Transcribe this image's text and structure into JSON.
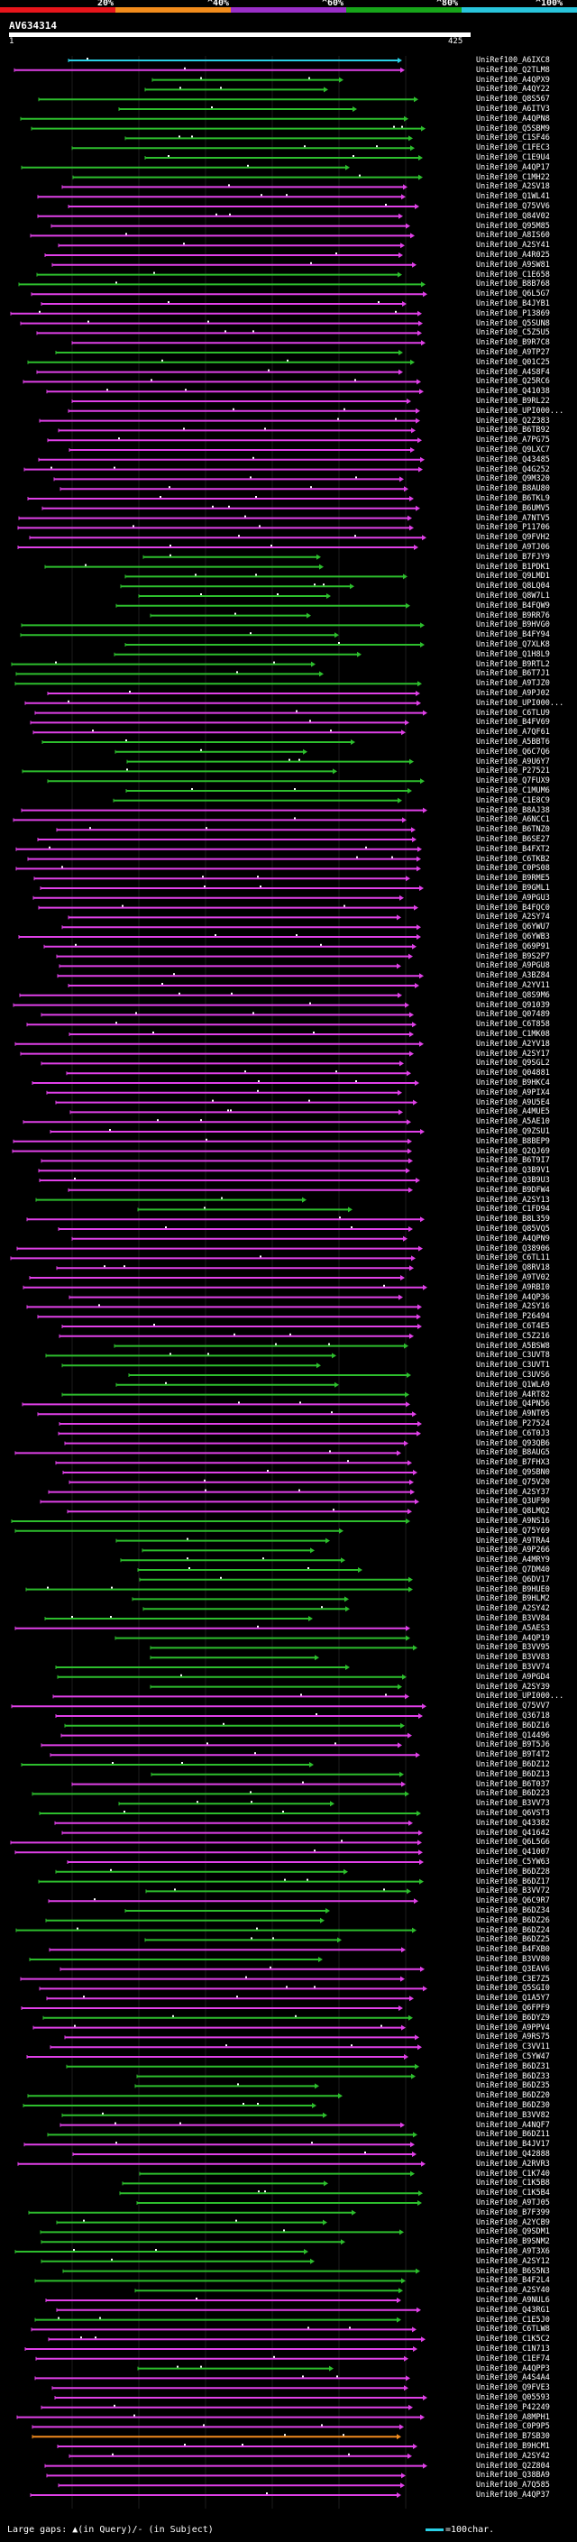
{
  "scale": {
    "labels": [
      "20%",
      "^40%",
      "^60%",
      "^80%",
      "^100%"
    ],
    "colors": [
      "#e8151b",
      "#f28c1c",
      "#9a2fc8",
      "#17a51a",
      "#29c5dc"
    ]
  },
  "query": {
    "id": "AV634314",
    "start": "1",
    "end": "425"
  },
  "legend": {
    "text": "Large gaps: ▲(in Query)/- (in Subject)",
    "scale_text": "=100char."
  },
  "hits": [
    {
      "label": "UniRef100_A6IXC8",
      "c": "cyan"
    },
    {
      "label": "UniRef100_Q2TLM8",
      "c": "magenta"
    },
    {
      "label": "UniRef100_A4QPX9",
      "c": "green"
    },
    {
      "label": "UniRef100_A4QY22",
      "c": "green"
    },
    {
      "label": "UniRef100_Q8S567",
      "c": "green"
    },
    {
      "label": "UniRef100_A6ITV3",
      "c": "green"
    },
    {
      "label": "UniRef100_A4QPN8",
      "c": "green"
    },
    {
      "label": "UniRef100_Q5SBM9",
      "c": "green"
    },
    {
      "label": "UniRef100_C1SF46",
      "c": "green"
    },
    {
      "label": "UniRef100_C1FEC3",
      "c": "green"
    },
    {
      "label": "UniRef100_C1E9U4",
      "c": "green"
    },
    {
      "label": "UniRef100_A4QP17",
      "c": "green"
    },
    {
      "label": "UniRef100_C1MH22",
      "c": "green"
    },
    {
      "label": "UniRef100_A2SV18",
      "c": "magenta"
    },
    {
      "label": "UniRef100_Q1WL41",
      "c": "magenta"
    },
    {
      "label": "UniRef100_Q75VV6",
      "c": "magenta"
    },
    {
      "label": "UniRef100_Q84V02",
      "c": "magenta"
    },
    {
      "label": "UniRef100_Q95M85",
      "c": "magenta"
    },
    {
      "label": "UniRef100_A8IS60",
      "c": "magenta"
    },
    {
      "label": "UniRef100_A2SY41",
      "c": "magenta"
    },
    {
      "label": "UniRef100_A4R025",
      "c": "magenta"
    },
    {
      "label": "UniRef100_A9SW81",
      "c": "magenta"
    },
    {
      "label": "UniRef100_C1E658",
      "c": "green"
    },
    {
      "label": "UniRef100_B8B768",
      "c": "green"
    },
    {
      "label": "UniRef100_Q6L5G7",
      "c": "magenta"
    },
    {
      "label": "UniRef100_B4JYB1",
      "c": "magenta"
    },
    {
      "label": "UniRef100_P13869",
      "c": "magenta"
    },
    {
      "label": "UniRef100_Q5SUN8",
      "c": "magenta"
    },
    {
      "label": "UniRef100_C5Z5U5",
      "c": "magenta"
    },
    {
      "label": "UniRef100_B9R7C8",
      "c": "magenta"
    },
    {
      "label": "UniRef100_A9TP27",
      "c": "green"
    },
    {
      "label": "UniRef100_Q01C25",
      "c": "green"
    },
    {
      "label": "UniRef100_A4S8F4",
      "c": "magenta"
    },
    {
      "label": "UniRef100_Q25RC6",
      "c": "magenta"
    },
    {
      "label": "UniRef100_Q41038",
      "c": "magenta"
    },
    {
      "label": "UniRef100_B9RL22",
      "c": "magenta"
    },
    {
      "label": "UniRef100_UPI000...",
      "c": "magenta"
    },
    {
      "label": "UniRef100_Q2Z383",
      "c": "magenta"
    },
    {
      "label": "UniRef100_B6TB92",
      "c": "magenta"
    },
    {
      "label": "UniRef100_A7PG75",
      "c": "magenta"
    },
    {
      "label": "UniRef100_Q9LXC7",
      "c": "magenta"
    },
    {
      "label": "UniRef100_Q43485",
      "c": "magenta"
    },
    {
      "label": "UniRef100_Q4G252",
      "c": "magenta"
    },
    {
      "label": "UniRef100_Q9M320",
      "c": "magenta"
    },
    {
      "label": "UniRef100_B8AU80",
      "c": "magenta"
    },
    {
      "label": "UniRef100_B6TKL9",
      "c": "magenta"
    },
    {
      "label": "UniRef100_B6UMV5",
      "c": "magenta"
    },
    {
      "label": "UniRef100_A7NTV5",
      "c": "magenta"
    },
    {
      "label": "UniRef100_P11706",
      "c": "magenta"
    },
    {
      "label": "UniRef100_Q9FVH2",
      "c": "magenta"
    },
    {
      "label": "UniRef100_A9TJ06",
      "c": "magenta"
    },
    {
      "label": "UniRef100_B7FJY9",
      "c": "green"
    },
    {
      "label": "UniRef100_B1PDK1",
      "c": "green"
    },
    {
      "label": "UniRef100_Q9LMD1",
      "c": "green"
    },
    {
      "label": "UniRef100_Q8LQ04",
      "c": "green"
    },
    {
      "label": "UniRef100_Q8W7L1",
      "c": "green"
    },
    {
      "label": "UniRef100_B4FQW9",
      "c": "green"
    },
    {
      "label": "UniRef100_B9RR76",
      "c": "green"
    },
    {
      "label": "UniRef100_B9HVG0",
      "c": "green"
    },
    {
      "label": "UniRef100_B4FY94",
      "c": "green"
    },
    {
      "label": "UniRef100_Q7XLK8",
      "c": "green"
    },
    {
      "label": "UniRef100_Q1H8L9",
      "c": "green"
    },
    {
      "label": "UniRef100_B9RTL2",
      "c": "green"
    },
    {
      "label": "UniRef100_B6T7J1",
      "c": "green"
    },
    {
      "label": "UniRef100_A9TJZ0",
      "c": "green"
    },
    {
      "label": "UniRef100_A9PJ02",
      "c": "magenta"
    },
    {
      "label": "UniRef100_UPI000...",
      "c": "magenta"
    },
    {
      "label": "UniRef100_C6TLU9",
      "c": "magenta"
    },
    {
      "label": "UniRef100_B4FV69",
      "c": "magenta"
    },
    {
      "label": "UniRef100_A7QF61",
      "c": "magenta"
    },
    {
      "label": "UniRef100_A5BBT6",
      "c": "green"
    },
    {
      "label": "UniRef100_Q6C7Q6",
      "c": "green"
    },
    {
      "label": "UniRef100_A9U6Y7",
      "c": "green"
    },
    {
      "label": "UniRef100_P27521",
      "c": "green"
    },
    {
      "label": "UniRef100_Q7FUX9",
      "c": "green"
    },
    {
      "label": "UniRef100_C1MUM6",
      "c": "green"
    },
    {
      "label": "UniRef100_C1E8C9",
      "c": "green"
    },
    {
      "label": "UniRef100_B8AJ38",
      "c": "magenta"
    },
    {
      "label": "UniRef100_A6NCC1",
      "c": "magenta"
    },
    {
      "label": "UniRef100_B6TNZ0",
      "c": "magenta"
    },
    {
      "label": "UniRef100_B6SE27",
      "c": "magenta"
    },
    {
      "label": "UniRef100_B4FXT2",
      "c": "magenta"
    },
    {
      "label": "UniRef100_C6TKB2",
      "c": "magenta"
    },
    {
      "label": "UniRef100_C0PS08",
      "c": "magenta"
    },
    {
      "label": "UniRef100_B9RME5",
      "c": "magenta"
    },
    {
      "label": "UniRef100_B9GML1",
      "c": "magenta"
    },
    {
      "label": "UniRef100_A9PGU3",
      "c": "magenta"
    },
    {
      "label": "UniRef100_B4FQC0",
      "c": "magenta"
    },
    {
      "label": "UniRef100_A2SY74",
      "c": "magenta"
    },
    {
      "label": "UniRef100_Q6YWU7",
      "c": "magenta"
    },
    {
      "label": "UniRef100_Q6YWB3",
      "c": "magenta"
    },
    {
      "label": "UniRef100_Q69P91",
      "c": "magenta"
    },
    {
      "label": "UniRef100_B9S2P7",
      "c": "magenta"
    },
    {
      "label": "UniRef100_A9PGU8",
      "c": "magenta"
    },
    {
      "label": "UniRef100_A3BZ84",
      "c": "magenta"
    },
    {
      "label": "UniRef100_A2YV11",
      "c": "magenta"
    },
    {
      "label": "UniRef100_Q8S9M6",
      "c": "magenta"
    },
    {
      "label": "UniRef100_Q91039",
      "c": "magenta"
    },
    {
      "label": "UniRef100_Q07489",
      "c": "magenta"
    },
    {
      "label": "UniRef100_C6T858",
      "c": "magenta"
    },
    {
      "label": "UniRef100_C1MK08",
      "c": "magenta"
    },
    {
      "label": "UniRef100_A2YV18",
      "c": "magenta"
    },
    {
      "label": "UniRef100_A2SY17",
      "c": "magenta"
    },
    {
      "label": "UniRef100_Q9SGL2",
      "c": "magenta"
    },
    {
      "label": "UniRef100_Q04881",
      "c": "magenta"
    },
    {
      "label": "UniRef100_B9HKC4",
      "c": "magenta"
    },
    {
      "label": "UniRef100_A9PIX4",
      "c": "magenta"
    },
    {
      "label": "UniRef100_A9U5E4",
      "c": "magenta"
    },
    {
      "label": "UniRef100_A4MUE5",
      "c": "magenta"
    },
    {
      "label": "UniRef100_A5AE10",
      "c": "magenta"
    },
    {
      "label": "UniRef100_Q9ZSU1",
      "c": "magenta"
    },
    {
      "label": "UniRef100_B8BEP9",
      "c": "magenta"
    },
    {
      "label": "UniRef100_Q2QJ69",
      "c": "magenta"
    },
    {
      "label": "UniRef100_B6T9I7",
      "c": "magenta"
    },
    {
      "label": "UniRef100_Q3B9V1",
      "c": "magenta"
    },
    {
      "label": "UniRef100_Q3B9U3",
      "c": "magenta"
    },
    {
      "label": "UniRef100_B9DFW4",
      "c": "magenta"
    },
    {
      "label": "UniRef100_A2SY13",
      "c": "green"
    },
    {
      "label": "UniRef100_C1FD94",
      "c": "green"
    },
    {
      "label": "UniRef100_B8L359",
      "c": "magenta"
    },
    {
      "label": "UniRef100_Q85VQ5",
      "c": "magenta"
    },
    {
      "label": "UniRef100_A4QPN9",
      "c": "magenta"
    },
    {
      "label": "UniRef100_Q38906",
      "c": "magenta"
    },
    {
      "label": "UniRef100_C6TL11",
      "c": "magenta"
    },
    {
      "label": "UniRef100_Q8RV18",
      "c": "magenta"
    },
    {
      "label": "UniRef100_A9TV02",
      "c": "magenta"
    },
    {
      "label": "UniRef100_A9RBI0",
      "c": "magenta"
    },
    {
      "label": "UniRef100_A4QP36",
      "c": "magenta"
    },
    {
      "label": "UniRef100_A2SY16",
      "c": "magenta"
    },
    {
      "label": "UniRef100_P26494",
      "c": "magenta"
    },
    {
      "label": "UniRef100_C6T4E5",
      "c": "magenta"
    },
    {
      "label": "UniRef100_C5Z216",
      "c": "magenta"
    },
    {
      "label": "UniRef100_A5BSW8",
      "c": "green"
    },
    {
      "label": "UniRef100_C3UVT8",
      "c": "green"
    },
    {
      "label": "UniRef100_C3UVT1",
      "c": "green"
    },
    {
      "label": "UniRef100_C3UVS6",
      "c": "green"
    },
    {
      "label": "UniRef100_Q1WLA9",
      "c": "green"
    },
    {
      "label": "UniRef100_A4RT82",
      "c": "green"
    },
    {
      "label": "UniRef100_Q4PN56",
      "c": "magenta"
    },
    {
      "label": "UniRef100_A9NT05",
      "c": "magenta"
    },
    {
      "label": "UniRef100_P27524",
      "c": "magenta"
    },
    {
      "label": "UniRef100_C6T0J3",
      "c": "magenta"
    },
    {
      "label": "UniRef100_Q93QB6",
      "c": "magenta"
    },
    {
      "label": "UniRef100_B8AUG5",
      "c": "magenta"
    },
    {
      "label": "UniRef100_B7FHX3",
      "c": "magenta"
    },
    {
      "label": "UniRef100_Q9SBN0",
      "c": "magenta"
    },
    {
      "label": "UniRef100_Q75V20",
      "c": "magenta"
    },
    {
      "label": "UniRef100_A2SY37",
      "c": "magenta"
    },
    {
      "label": "UniRef100_Q3UF90",
      "c": "magenta"
    },
    {
      "label": "UniRef100_Q8LMQ2",
      "c": "magenta"
    },
    {
      "label": "UniRef100_A9NS16",
      "c": "green"
    },
    {
      "label": "UniRef100_Q75Y69",
      "c": "green"
    },
    {
      "label": "UniRef100_A9TRA4",
      "c": "green"
    },
    {
      "label": "UniRef100_A9P266",
      "c": "green"
    },
    {
      "label": "UniRef100_A4MRY9",
      "c": "green"
    },
    {
      "label": "UniRef100_Q7DM40",
      "c": "green"
    },
    {
      "label": "UniRef100_Q6DV17",
      "c": "green"
    },
    {
      "label": "UniRef100_B9HUE0",
      "c": "green"
    },
    {
      "label": "UniRef100_B9HLM2",
      "c": "green"
    },
    {
      "label": "UniRef100_A2SY42",
      "c": "green"
    },
    {
      "label": "UniRef100_B3VV84",
      "c": "green"
    },
    {
      "label": "UniRef100_A5AES3",
      "c": "magenta"
    },
    {
      "label": "UniRef100_A4QP19",
      "c": "green"
    },
    {
      "label": "UniRef100_B3VV95",
      "c": "green"
    },
    {
      "label": "UniRef100_B3VV83",
      "c": "green"
    },
    {
      "label": "UniRef100_B3VV74",
      "c": "green"
    },
    {
      "label": "UniRef100_A9PGD4",
      "c": "green"
    },
    {
      "label": "UniRef100_A2SY39",
      "c": "green"
    },
    {
      "label": "UniRef100_UPI000...",
      "c": "magenta"
    },
    {
      "label": "UniRef100_Q75VV7",
      "c": "magenta"
    },
    {
      "label": "UniRef100_Q36718",
      "c": "magenta"
    },
    {
      "label": "UniRef100_B6DZ16",
      "c": "green"
    },
    {
      "label": "UniRef100_Q14496",
      "c": "magenta"
    },
    {
      "label": "UniRef100_B9T5J6",
      "c": "magenta"
    },
    {
      "label": "UniRef100_B9T4T2",
      "c": "magenta"
    },
    {
      "label": "UniRef100_B6DZ12",
      "c": "green"
    },
    {
      "label": "UniRef100_B6DZ13",
      "c": "green"
    },
    {
      "label": "UniRef100_B6T037",
      "c": "magenta"
    },
    {
      "label": "UniRef100_B6D223",
      "c": "green"
    },
    {
      "label": "UniRef100_B3VV73",
      "c": "green"
    },
    {
      "label": "UniRef100_Q6VST3",
      "c": "green"
    },
    {
      "label": "UniRef100_Q43382",
      "c": "magenta"
    },
    {
      "label": "UniRef100_Q41642",
      "c": "magenta"
    },
    {
      "label": "UniRef100_Q6L5G6",
      "c": "magenta"
    },
    {
      "label": "UniRef100_Q41007",
      "c": "magenta"
    },
    {
      "label": "UniRef100_C5YW63",
      "c": "magenta"
    },
    {
      "label": "UniRef100_B6DZ28",
      "c": "green"
    },
    {
      "label": "UniRef100_B6DZ17",
      "c": "green"
    },
    {
      "label": "UniRef100_B3VV72",
      "c": "green"
    },
    {
      "label": "UniRef100_Q6C9R7",
      "c": "magenta"
    },
    {
      "label": "UniRef100_B6DZ34",
      "c": "green"
    },
    {
      "label": "UniRef100_B6DZ26",
      "c": "green"
    },
    {
      "label": "UniRef100_B6DZ24",
      "c": "green"
    },
    {
      "label": "UniRef100_B6DZ25",
      "c": "green"
    },
    {
      "label": "UniRef100_B4FXB0",
      "c": "magenta"
    },
    {
      "label": "UniRef100_B3VV80",
      "c": "green"
    },
    {
      "label": "UniRef100_Q3EAV6",
      "c": "magenta"
    },
    {
      "label": "UniRef100_C3E7Z5",
      "c": "magenta"
    },
    {
      "label": "UniRef100_Q5SGI0",
      "c": "magenta"
    },
    {
      "label": "UniRef100_Q1A5Y7",
      "c": "magenta"
    },
    {
      "label": "UniRef100_Q6FPF9",
      "c": "magenta"
    },
    {
      "label": "UniRef100_B6DYZ9",
      "c": "green"
    },
    {
      "label": "UniRef100_A9PPV4",
      "c": "magenta"
    },
    {
      "label": "UniRef100_A9RS75",
      "c": "magenta"
    },
    {
      "label": "UniRef100_C3VV11",
      "c": "magenta"
    },
    {
      "label": "UniRef100_C5YW47",
      "c": "magenta"
    },
    {
      "label": "UniRef100_B6DZ31",
      "c": "green"
    },
    {
      "label": "UniRef100_B6DZ33",
      "c": "green"
    },
    {
      "label": "UniRef100_B6DZ35",
      "c": "green"
    },
    {
      "label": "UniRef100_B6DZ20",
      "c": "green"
    },
    {
      "label": "UniRef100_B6DZ30",
      "c": "green"
    },
    {
      "label": "UniRef100_B3VV82",
      "c": "green"
    },
    {
      "label": "UniRef100_A4NQF7",
      "c": "magenta"
    },
    {
      "label": "UniRef100_B6DZ11",
      "c": "green"
    },
    {
      "label": "UniRef100_B4JV17",
      "c": "magenta"
    },
    {
      "label": "UniRef100_Q42888",
      "c": "magenta"
    },
    {
      "label": "UniRef100_A2RVR3",
      "c": "magenta"
    },
    {
      "label": "UniRef100_C1K740",
      "c": "green"
    },
    {
      "label": "UniRef100_C1K5B8",
      "c": "green"
    },
    {
      "label": "UniRef100_C1K5B4",
      "c": "green"
    },
    {
      "label": "UniRef100_A9TJ05",
      "c": "green"
    },
    {
      "label": "UniRef100_B7F399",
      "c": "green"
    },
    {
      "label": "UniRef100_A2YCB9",
      "c": "green"
    },
    {
      "label": "UniRef100_Q9SDM1",
      "c": "green"
    },
    {
      "label": "UniRef100_B9SNM2",
      "c": "green"
    },
    {
      "label": "UniRef100_A9T3X6",
      "c": "green"
    },
    {
      "label": "UniRef100_A2SY12",
      "c": "green"
    },
    {
      "label": "UniRef100_B6S5N3",
      "c": "green"
    },
    {
      "label": "UniRef100_B4F2L4",
      "c": "green"
    },
    {
      "label": "UniRef100_A2SY40",
      "c": "green"
    },
    {
      "label": "UniRef100_A9NUL6",
      "c": "magenta"
    },
    {
      "label": "UniRef100_Q43RG1",
      "c": "magenta"
    },
    {
      "label": "UniRef100_C1E5J0",
      "c": "green"
    },
    {
      "label": "UniRef100_C6TLW8",
      "c": "magenta"
    },
    {
      "label": "UniRef100_C1K5C2",
      "c": "magenta"
    },
    {
      "label": "UniRef100_C1N713",
      "c": "magenta"
    },
    {
      "label": "UniRef100_C1EF74",
      "c": "magenta"
    },
    {
      "label": "UniRef100_A4QPP3",
      "c": "green"
    },
    {
      "label": "UniRef100_A4S4A4",
      "c": "magenta"
    },
    {
      "label": "UniRef100_Q9FVE3",
      "c": "magenta"
    },
    {
      "label": "UniRef100_Q05593",
      "c": "magenta"
    },
    {
      "label": "UniRef100_P42249",
      "c": "magenta"
    },
    {
      "label": "UniRef100_A8MPH1",
      "c": "magenta"
    },
    {
      "label": "UniRef100_C0P9P5",
      "c": "magenta"
    },
    {
      "label": "UniRef100_B7SB30",
      "c": "orange"
    },
    {
      "label": "UniRef100_B9HCM1",
      "c": "magenta"
    },
    {
      "label": "UniRef100_A2SY42",
      "c": "magenta"
    },
    {
      "label": "UniRef100_Q2Z804",
      "c": "magenta"
    },
    {
      "label": "UniRef100_Q38BA9",
      "c": "magenta"
    },
    {
      "label": "UniRef100_A7Q585",
      "c": "magenta"
    },
    {
      "label": "UniRef100_A4QP37",
      "c": "magenta"
    }
  ]
}
